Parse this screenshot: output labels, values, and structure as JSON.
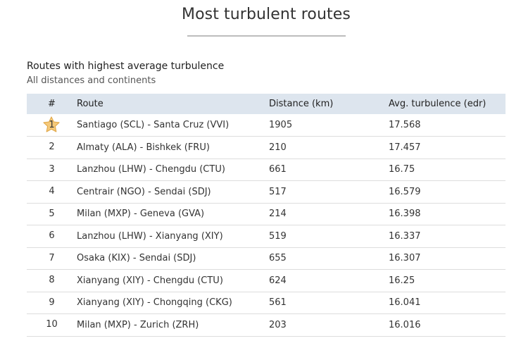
{
  "page": {
    "title": "Most turbulent routes"
  },
  "section": {
    "title": "Routes with highest average turbulence",
    "subtitle": "All distances and continents"
  },
  "table": {
    "columns": [
      "#",
      "Route",
      "Distance (km)",
      "Avg. turbulence (edr)"
    ],
    "rows": [
      {
        "rank": "1",
        "route": "Santiago (SCL) - Santa Cruz (VVI)",
        "distance": "1905",
        "turbulence": "17.568"
      },
      {
        "rank": "2",
        "route": "Almaty (ALA) - Bishkek (FRU)",
        "distance": "210",
        "turbulence": "17.457"
      },
      {
        "rank": "3",
        "route": "Lanzhou (LHW) - Chengdu (CTU)",
        "distance": "661",
        "turbulence": "16.75"
      },
      {
        "rank": "4",
        "route": "Centrair (NGO) - Sendai (SDJ)",
        "distance": "517",
        "turbulence": "16.579"
      },
      {
        "rank": "5",
        "route": "Milan (MXP) - Geneva (GVA)",
        "distance": "214",
        "turbulence": "16.398"
      },
      {
        "rank": "6",
        "route": "Lanzhou (LHW) - Xianyang (XIY)",
        "distance": "519",
        "turbulence": "16.337"
      },
      {
        "rank": "7",
        "route": "Osaka (KIX) - Sendai (SDJ)",
        "distance": "655",
        "turbulence": "16.307"
      },
      {
        "rank": "8",
        "route": "Xianyang (XIY) - Chengdu (CTU)",
        "distance": "624",
        "turbulence": "16.25"
      },
      {
        "rank": "9",
        "route": "Xianyang (XIY) - Chongqing (CKG)",
        "distance": "561",
        "turbulence": "16.041"
      },
      {
        "rank": "10",
        "route": "Milan (MXP) - Zurich (ZRH)",
        "distance": "203",
        "turbulence": "16.016"
      }
    ]
  },
  "icons": {
    "top_rank": "star-icon"
  },
  "colors": {
    "header_bg": "#dde5ee",
    "star_fill": "#f5c97a",
    "star_stroke": "#e0a84a",
    "row_border": "#dddddd"
  }
}
